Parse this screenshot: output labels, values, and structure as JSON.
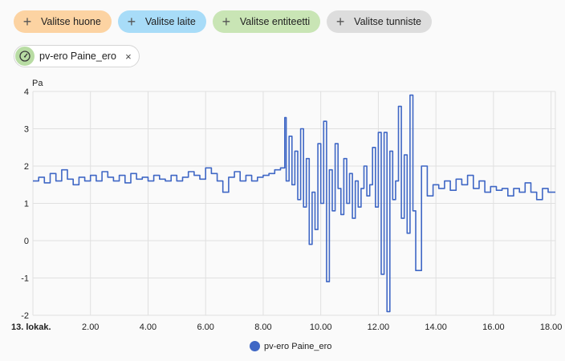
{
  "filters": {
    "room": "Valitse huone",
    "device": "Valitse laite",
    "entity": "Valitse entiteetti",
    "label": "Valitse tunniste"
  },
  "selected_entity": {
    "name": "pv-ero Paine_ero",
    "icon": "gauge-icon",
    "close": "×"
  },
  "colors": {
    "series": "#3f67c5"
  },
  "chart_data": {
    "type": "line",
    "ylabel": "Pa",
    "ylim": [
      -2,
      4
    ],
    "yticks": [
      "-2",
      "-1",
      "0",
      "1",
      "2",
      "3",
      "4"
    ],
    "xlim_hours": [
      0,
      18.15
    ],
    "xticks": [
      "13. lokak.",
      "2.00",
      "4.00",
      "6.00",
      "8.00",
      "10.00",
      "12.00",
      "14.00",
      "16.00",
      "18.00"
    ],
    "grid": true,
    "legend_position": "bottom",
    "series": [
      {
        "name": "pv-ero Paine_ero",
        "x": [
          0.0,
          0.2,
          0.4,
          0.6,
          0.8,
          1.0,
          1.2,
          1.4,
          1.6,
          1.8,
          2.0,
          2.2,
          2.4,
          2.6,
          2.8,
          3.0,
          3.2,
          3.4,
          3.6,
          3.8,
          4.0,
          4.2,
          4.4,
          4.6,
          4.8,
          5.0,
          5.2,
          5.4,
          5.6,
          5.8,
          6.0,
          6.2,
          6.4,
          6.6,
          6.8,
          7.0,
          7.2,
          7.4,
          7.6,
          7.8,
          8.0,
          8.2,
          8.4,
          8.6,
          8.75,
          8.8,
          8.9,
          9.0,
          9.1,
          9.2,
          9.3,
          9.4,
          9.5,
          9.6,
          9.7,
          9.8,
          9.9,
          10.0,
          10.1,
          10.2,
          10.3,
          10.4,
          10.5,
          10.6,
          10.7,
          10.8,
          10.9,
          11.0,
          11.1,
          11.2,
          11.3,
          11.4,
          11.5,
          11.6,
          11.7,
          11.8,
          11.9,
          12.0,
          12.1,
          12.2,
          12.3,
          12.4,
          12.5,
          12.6,
          12.7,
          12.8,
          12.9,
          13.0,
          13.1,
          13.2,
          13.3,
          13.5,
          13.7,
          13.9,
          14.1,
          14.3,
          14.5,
          14.7,
          14.9,
          15.1,
          15.3,
          15.5,
          15.7,
          15.9,
          16.1,
          16.3,
          16.5,
          16.7,
          16.9,
          17.1,
          17.3,
          17.5,
          17.7,
          17.9,
          18.15
        ],
        "values": [
          1.6,
          1.7,
          1.55,
          1.8,
          1.6,
          1.9,
          1.65,
          1.5,
          1.7,
          1.6,
          1.75,
          1.6,
          1.85,
          1.7,
          1.6,
          1.75,
          1.55,
          1.8,
          1.65,
          1.7,
          1.6,
          1.75,
          1.65,
          1.6,
          1.75,
          1.6,
          1.7,
          1.85,
          1.75,
          1.65,
          1.95,
          1.8,
          1.6,
          1.3,
          1.7,
          1.85,
          1.6,
          1.75,
          1.6,
          1.7,
          1.75,
          1.8,
          1.9,
          1.95,
          3.3,
          1.6,
          2.8,
          1.5,
          2.4,
          1.1,
          3.0,
          0.9,
          2.2,
          -0.1,
          1.3,
          0.3,
          2.6,
          1.0,
          3.2,
          -1.1,
          1.9,
          0.8,
          2.6,
          1.4,
          0.7,
          2.2,
          1.0,
          1.8,
          0.6,
          1.6,
          0.9,
          1.4,
          2.0,
          1.2,
          1.5,
          2.5,
          0.9,
          2.9,
          -0.9,
          2.9,
          -1.9,
          2.4,
          1.1,
          1.6,
          3.6,
          0.6,
          2.3,
          0.2,
          3.9,
          0.8,
          -0.8,
          2.0,
          1.2,
          1.5,
          1.4,
          1.6,
          1.35,
          1.65,
          1.5,
          1.75,
          1.4,
          1.6,
          1.3,
          1.45,
          1.35,
          1.4,
          1.2,
          1.4,
          1.3,
          1.55,
          1.3,
          1.1,
          1.4,
          1.3,
          1.3
        ]
      }
    ]
  }
}
